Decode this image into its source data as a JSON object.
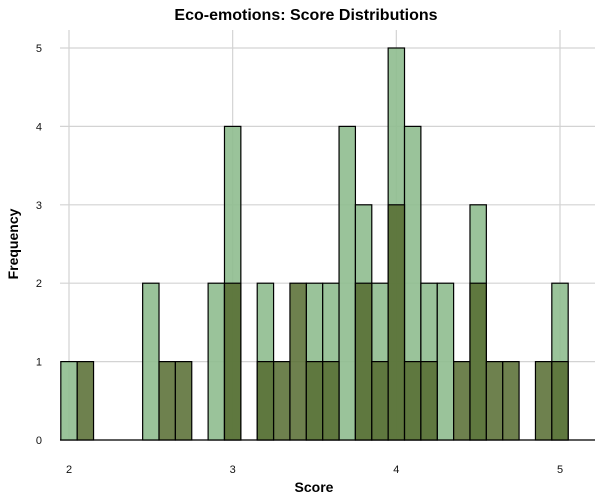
{
  "chart_data": {
    "type": "bar",
    "title": "Eco-emotions: Score Distributions",
    "xlabel": "Score",
    "ylabel": "Frequency",
    "xlim": [
      1.85,
      5.22
    ],
    "ylim": [
      0,
      5.2
    ],
    "x_ticks": [
      2,
      3,
      4,
      5
    ],
    "y_ticks": [
      0,
      1,
      2,
      3,
      4,
      5
    ],
    "bin_width": 0.1,
    "grid": true,
    "legend": "none",
    "colors": {
      "series_a_fill": "#8fbc8f",
      "series_a_opacity": 0.9,
      "series_b_fill": "#556b2f",
      "series_b_opacity": 0.85,
      "bar_stroke": "#000000",
      "grid": "#d3d3d3"
    },
    "series": [
      {
        "bins": [
          {
            "x": 2.0,
            "count": 1
          },
          {
            "x": 2.1,
            "count": 0
          },
          {
            "x": 2.5,
            "count": 2
          },
          {
            "x": 2.9,
            "count": 2
          },
          {
            "x": 3.0,
            "count": 4
          },
          {
            "x": 3.2,
            "count": 2
          },
          {
            "x": 3.5,
            "count": 2
          },
          {
            "x": 3.6,
            "count": 2
          },
          {
            "x": 3.7,
            "count": 4
          },
          {
            "x": 3.8,
            "count": 3
          },
          {
            "x": 3.9,
            "count": 2
          },
          {
            "x": 4.0,
            "count": 5
          },
          {
            "x": 4.1,
            "count": 4
          },
          {
            "x": 4.2,
            "count": 2
          },
          {
            "x": 4.3,
            "count": 2
          },
          {
            "x": 4.5,
            "count": 3
          },
          {
            "x": 5.0,
            "count": 2
          }
        ]
      },
      {
        "bins": [
          {
            "x": 2.1,
            "count": 1
          },
          {
            "x": 2.6,
            "count": 1
          },
          {
            "x": 2.7,
            "count": 1
          },
          {
            "x": 3.0,
            "count": 2
          },
          {
            "x": 3.2,
            "count": 1
          },
          {
            "x": 3.3,
            "count": 1
          },
          {
            "x": 3.4,
            "count": 2
          },
          {
            "x": 3.5,
            "count": 1
          },
          {
            "x": 3.6,
            "count": 1
          },
          {
            "x": 3.8,
            "count": 2
          },
          {
            "x": 3.9,
            "count": 1
          },
          {
            "x": 4.0,
            "count": 3
          },
          {
            "x": 4.1,
            "count": 1
          },
          {
            "x": 4.2,
            "count": 1
          },
          {
            "x": 4.4,
            "count": 1
          },
          {
            "x": 4.5,
            "count": 2
          },
          {
            "x": 4.6,
            "count": 1
          },
          {
            "x": 4.7,
            "count": 1
          },
          {
            "x": 4.9,
            "count": 1
          },
          {
            "x": 5.0,
            "count": 1
          }
        ]
      }
    ]
  }
}
